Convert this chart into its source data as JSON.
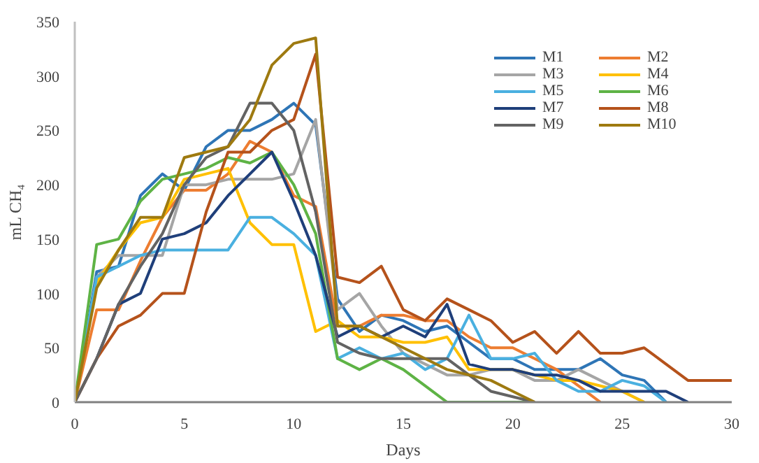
{
  "chart_data": {
    "type": "line",
    "xlabel": "Days",
    "ylabel": "mL CH₄",
    "xlim": [
      0,
      30
    ],
    "ylim": [
      0,
      350
    ],
    "xticks": [
      0,
      5,
      10,
      15,
      20,
      25,
      30
    ],
    "yticks": [
      0,
      50,
      100,
      150,
      200,
      250,
      300,
      350
    ],
    "grid": false,
    "legend": "top right",
    "marker": "none",
    "line_style": "solid",
    "x": [
      0,
      1,
      2,
      3,
      4,
      5,
      6,
      7,
      8,
      9,
      10,
      11,
      12,
      13,
      14,
      15,
      16,
      17,
      18,
      19,
      20,
      21,
      22,
      23,
      24,
      25,
      26,
      27,
      28,
      29,
      30
    ],
    "series": [
      {
        "name": "M1",
        "color": "#2e75b6",
        "values": [
          0,
          120,
          125,
          190,
          210,
          195,
          235,
          250,
          250,
          260,
          275,
          255,
          95,
          65,
          80,
          75,
          65,
          70,
          55,
          40,
          40,
          30,
          30,
          30,
          40,
          25,
          20,
          0,
          null,
          null,
          null
        ]
      },
      {
        "name": "M2",
        "color": "#ed7d31",
        "values": [
          0,
          85,
          85,
          130,
          170,
          195,
          195,
          210,
          240,
          230,
          190,
          180,
          70,
          70,
          80,
          80,
          75,
          75,
          60,
          50,
          50,
          40,
          30,
          15,
          0,
          null,
          null,
          null,
          null,
          null,
          null
        ]
      },
      {
        "name": "M3",
        "color": "#a5a5a5",
        "values": [
          0,
          115,
          135,
          135,
          135,
          200,
          200,
          205,
          205,
          205,
          210,
          260,
          85,
          100,
          70,
          45,
          35,
          25,
          25,
          30,
          30,
          20,
          20,
          30,
          20,
          10,
          0,
          null,
          null,
          null,
          null
        ]
      },
      {
        "name": "M4",
        "color": "#ffc000",
        "values": [
          0,
          110,
          140,
          165,
          170,
          205,
          210,
          215,
          165,
          145,
          145,
          65,
          75,
          60,
          60,
          55,
          55,
          60,
          30,
          30,
          30,
          25,
          20,
          20,
          15,
          10,
          0,
          null,
          null,
          null,
          null
        ]
      },
      {
        "name": "M5",
        "color": "#4ab0e0",
        "values": [
          0,
          115,
          125,
          135,
          140,
          140,
          140,
          140,
          170,
          170,
          155,
          135,
          40,
          50,
          40,
          45,
          30,
          40,
          80,
          40,
          40,
          45,
          20,
          10,
          10,
          20,
          15,
          0,
          null,
          null,
          null
        ]
      },
      {
        "name": "M6",
        "color": "#5eb345",
        "values": [
          0,
          145,
          150,
          185,
          205,
          210,
          215,
          225,
          220,
          230,
          200,
          155,
          40,
          30,
          40,
          30,
          15,
          0,
          0,
          0,
          0,
          0,
          null,
          null,
          null,
          null,
          null,
          null,
          null,
          null,
          null
        ]
      },
      {
        "name": "M7",
        "color": "#1f3f7a",
        "values": [
          0,
          40,
          90,
          100,
          150,
          155,
          165,
          190,
          210,
          230,
          185,
          135,
          60,
          70,
          60,
          70,
          60,
          90,
          35,
          30,
          30,
          25,
          25,
          20,
          10,
          10,
          10,
          10,
          0,
          null,
          null
        ]
      },
      {
        "name": "M8",
        "color": "#b5521b",
        "values": [
          0,
          40,
          70,
          80,
          100,
          100,
          175,
          230,
          230,
          250,
          260,
          320,
          115,
          110,
          125,
          85,
          75,
          95,
          85,
          75,
          55,
          65,
          45,
          65,
          45,
          45,
          50,
          35,
          20,
          20,
          20
        ]
      },
      {
        "name": "M9",
        "color": "#636363",
        "values": [
          0,
          40,
          90,
          125,
          155,
          200,
          225,
          235,
          275,
          275,
          250,
          175,
          55,
          45,
          40,
          40,
          40,
          40,
          25,
          10,
          5,
          0,
          null,
          null,
          null,
          null,
          null,
          null,
          null,
          null,
          null
        ]
      },
      {
        "name": "M10",
        "color": "#9e7a10",
        "values": [
          0,
          105,
          140,
          170,
          170,
          225,
          230,
          235,
          260,
          310,
          330,
          335,
          70,
          70,
          60,
          50,
          40,
          30,
          25,
          20,
          10,
          0,
          null,
          null,
          null,
          null,
          null,
          null,
          null,
          null,
          null
        ]
      }
    ]
  }
}
